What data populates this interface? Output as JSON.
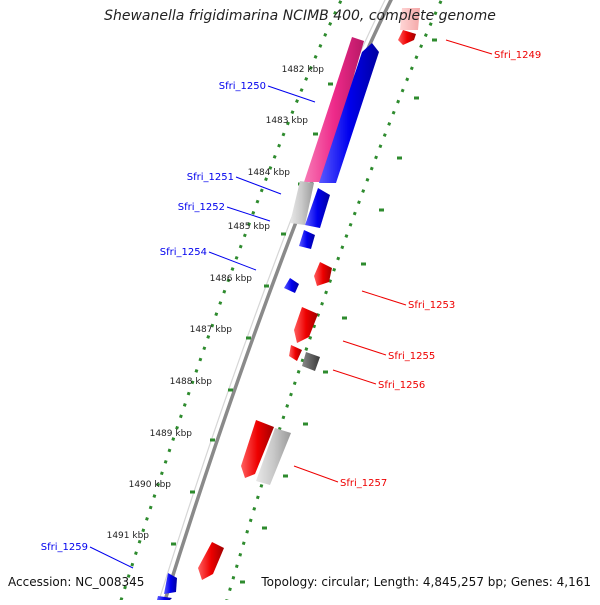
{
  "title": "Shewanella frigidimarina NCIMB 400, complete genome",
  "accession": "Accession: NC_008345",
  "topology": "Topology: circular; Length: 4,845,257 bp; Genes: 4,161",
  "colors": {
    "forward": "#0000ee",
    "reverse": "#ee0000",
    "pink": "#ee2a8a",
    "light_gray": "#c8c8c8",
    "dark_gray": "#606060",
    "backbone": "#8a8a8a",
    "tick": "#2e8b2e",
    "ruler_label": "#222222"
  },
  "ruler": {
    "unit": "kbp",
    "labels": [
      "1482 kbp",
      "1483 kbp",
      "1484 kbp",
      "1485 kbp",
      "1486 kbp",
      "1487 kbp",
      "1488 kbp",
      "1489 kbp",
      "1490 kbp",
      "1491 kbp"
    ]
  },
  "gene_labels": [
    {
      "name": "Sfri_1249",
      "strand": "reverse"
    },
    {
      "name": "Sfri_1250",
      "strand": "forward"
    },
    {
      "name": "Sfri_1251",
      "strand": "forward"
    },
    {
      "name": "Sfri_1252",
      "strand": "forward"
    },
    {
      "name": "Sfri_1254",
      "strand": "forward"
    },
    {
      "name": "Sfri_1253",
      "strand": "reverse"
    },
    {
      "name": "Sfri_1255",
      "strand": "reverse"
    },
    {
      "name": "Sfri_1256",
      "strand": "reverse"
    },
    {
      "name": "Sfri_1257",
      "strand": "reverse"
    },
    {
      "name": "Sfri_1259",
      "strand": "forward"
    }
  ]
}
